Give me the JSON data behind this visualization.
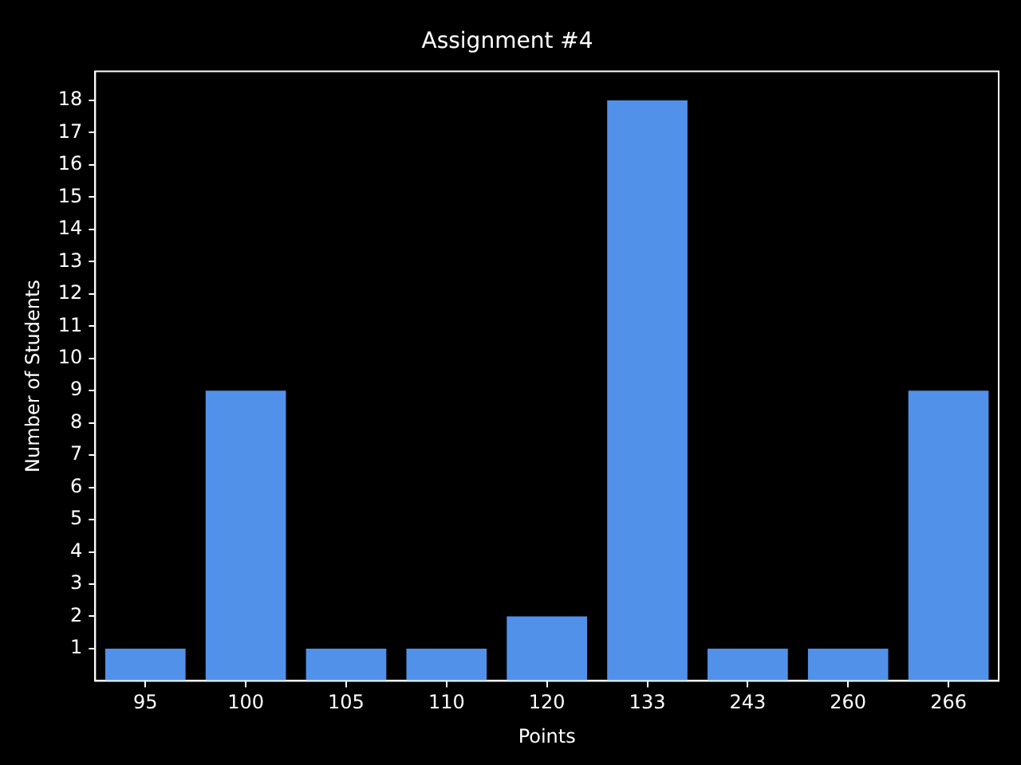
{
  "chart_data": {
    "type": "bar",
    "title": "Assignment #4",
    "xlabel": "Points",
    "ylabel": "Number of Students",
    "categories": [
      "95",
      "100",
      "105",
      "110",
      "120",
      "133",
      "243",
      "260",
      "266"
    ],
    "values": [
      1,
      9,
      1,
      1,
      2,
      18,
      1,
      1,
      9
    ],
    "color": "#5191e9",
    "ylim": [
      0,
      18.9
    ],
    "yticks": [
      1,
      2,
      3,
      4,
      5,
      6,
      7,
      8,
      9,
      10,
      11,
      12,
      13,
      14,
      15,
      16,
      17,
      18
    ],
    "grid": false,
    "legend": false
  }
}
